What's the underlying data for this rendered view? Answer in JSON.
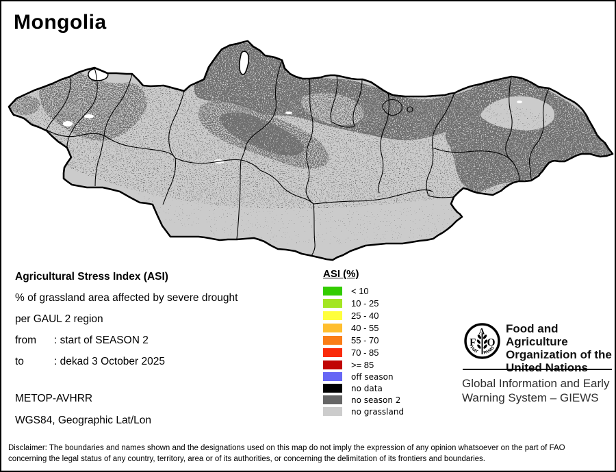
{
  "title": "Mongolia",
  "info": {
    "heading": "Agricultural Stress Index (ASI)",
    "line1": "% of grassland area affected by severe drought",
    "line2": "per GAUL 2 region",
    "from_label": "from",
    "from_value": ": start of SEASON 2",
    "to_label": "to",
    "to_value": ": dekad 3 October 2025",
    "sensor": "METOP-AVHRR",
    "projection": "WGS84, Geographic Lat/Lon"
  },
  "legend": {
    "title": "ASI (%)",
    "classes": [
      {
        "label": "< 10",
        "color": "#33CC00"
      },
      {
        "label": "10 - 25",
        "color": "#A3E622"
      },
      {
        "label": "25 - 40",
        "color": "#FFFF3C"
      },
      {
        "label": "40 - 55",
        "color": "#FFBE2E"
      },
      {
        "label": "55 - 70",
        "color": "#FA7D17"
      },
      {
        "label": "70 - 85",
        "color": "#FA2B0A"
      },
      {
        "label": ">= 85",
        "color": "#C00505"
      }
    ],
    "extra_classes": [
      {
        "label": "off season",
        "color": "#6666F5"
      },
      {
        "label": "no data",
        "color": "#000000"
      },
      {
        "label": "no season 2",
        "color": "#666666"
      },
      {
        "label": "no grassland",
        "color": "#CCCCCC"
      }
    ]
  },
  "map": {
    "colors": {
      "land": "#CBCBCB",
      "no_season2": "#6F6F6F",
      "border": "#000000",
      "water": "#FFFFFF"
    }
  },
  "fao": {
    "logo_letters": [
      "F",
      "A",
      "O"
    ],
    "logo_motto": "FIAT PANIS",
    "org_line1": "Food and Agriculture",
    "org_line2": "Organization of the",
    "org_line3": "United Nations",
    "giews_line1": "Global Information and Early",
    "giews_line2": "Warning System – GIEWS"
  },
  "disclaimer": {
    "line1": "Disclaimer: The boundaries and names shown and the designations used on this map do not imply the expression of any opinion whatsoever on the part of FAO",
    "line2": "concerning the legal status of any country, territory, area or of its authorities, or concerning the delimitation of its frontiers and boundaries."
  }
}
